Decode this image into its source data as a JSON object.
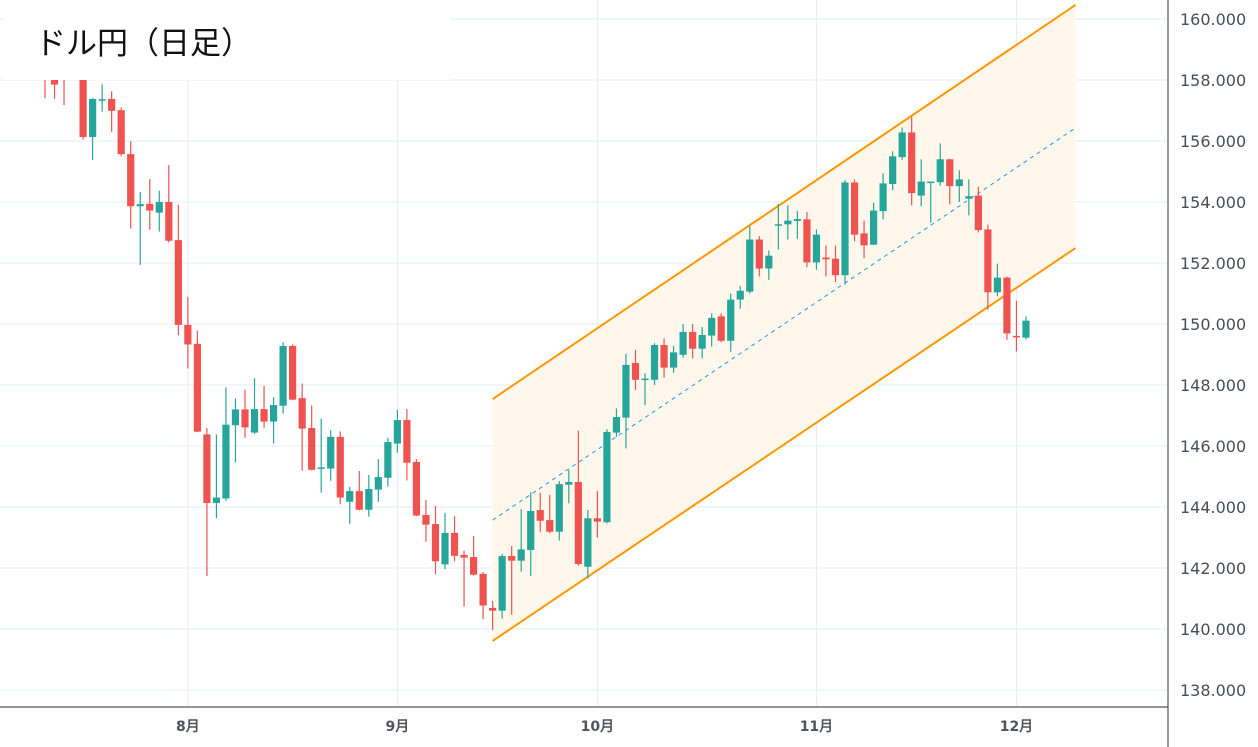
{
  "title": "ドル円（日足）",
  "chart_data": {
    "type": "candlestick",
    "title": "ドル円（日足）",
    "colors": {
      "up": "#26a69a",
      "down": "#ef5350",
      "channel": "#ff9800",
      "channel_fill": "#fff7eb",
      "midline": "#2196f3",
      "grid": "#e5eef2",
      "axis": "#50535e"
    },
    "ylim": [
      137.5,
      160.5
    ],
    "yticks": [
      "138.000",
      "140.000",
      "142.000",
      "144.000",
      "146.000",
      "148.000",
      "150.000",
      "152.000",
      "154.000",
      "156.000",
      "158.000",
      "160.000"
    ],
    "xticks": [
      {
        "label": "8月",
        "index": 15
      },
      {
        "label": "9月",
        "index": 37
      },
      {
        "label": "10月",
        "index": 58
      },
      {
        "label": "11月",
        "index": 81
      },
      {
        "label": "12月",
        "index": 102
      }
    ],
    "ohlc_fields": [
      "open",
      "high",
      "low",
      "close"
    ],
    "ohlc": [
      [
        158.3,
        158.5,
        157.4,
        158.0
      ],
      [
        158.0,
        158.2,
        157.38,
        157.85
      ],
      [
        158.1,
        158.4,
        157.18,
        158.0
      ],
      [
        158.1,
        158.9,
        158.05,
        158.6
      ],
      [
        158.4,
        158.6,
        156.05,
        156.13
      ],
      [
        156.13,
        157.4,
        155.38,
        157.38
      ],
      [
        157.33,
        157.86,
        156.96,
        157.37
      ],
      [
        157.38,
        157.63,
        156.3,
        156.99
      ],
      [
        157.01,
        157.1,
        155.5,
        155.57
      ],
      [
        155.57,
        156.0,
        153.13,
        153.86
      ],
      [
        153.86,
        154.33,
        151.94,
        153.93
      ],
      [
        153.94,
        154.75,
        153.09,
        153.72
      ],
      [
        153.65,
        154.37,
        153.03,
        154.0
      ],
      [
        154.0,
        155.21,
        152.67,
        152.73
      ],
      [
        152.75,
        153.91,
        149.63,
        149.97
      ],
      [
        149.97,
        150.89,
        148.54,
        149.33
      ],
      [
        149.35,
        149.78,
        146.45,
        146.47
      ],
      [
        146.38,
        146.59,
        141.74,
        144.13
      ],
      [
        144.13,
        146.38,
        143.63,
        144.31
      ],
      [
        144.28,
        147.92,
        144.2,
        146.7
      ],
      [
        146.68,
        147.56,
        145.46,
        147.2
      ],
      [
        147.2,
        147.85,
        146.27,
        146.61
      ],
      [
        146.44,
        148.22,
        146.4,
        147.21
      ],
      [
        147.21,
        147.97,
        146.6,
        146.8
      ],
      [
        146.8,
        147.6,
        146.08,
        147.34
      ],
      [
        147.32,
        149.4,
        147.06,
        149.28
      ],
      [
        149.28,
        149.33,
        147.5,
        147.52
      ],
      [
        147.57,
        148.05,
        145.19,
        146.57
      ],
      [
        146.59,
        147.33,
        145.2,
        145.22
      ],
      [
        145.25,
        146.9,
        144.47,
        145.3
      ],
      [
        145.26,
        146.52,
        144.86,
        146.3
      ],
      [
        146.3,
        146.48,
        144.09,
        144.31
      ],
      [
        144.17,
        144.66,
        143.45,
        144.52
      ],
      [
        144.52,
        145.18,
        143.89,
        143.91
      ],
      [
        143.91,
        145.05,
        143.68,
        144.59
      ],
      [
        144.57,
        145.57,
        144.17,
        144.98
      ],
      [
        144.96,
        146.26,
        144.67,
        146.13
      ],
      [
        146.08,
        147.18,
        145.78,
        146.85
      ],
      [
        146.85,
        147.21,
        144.87,
        145.45
      ],
      [
        145.48,
        145.57,
        143.7,
        143.72
      ],
      [
        143.74,
        144.23,
        142.86,
        143.42
      ],
      [
        143.44,
        144.03,
        141.79,
        142.22
      ],
      [
        142.12,
        143.8,
        141.96,
        143.15
      ],
      [
        143.15,
        143.7,
        142.22,
        142.4
      ],
      [
        142.43,
        142.57,
        140.73,
        142.34
      ],
      [
        142.36,
        143.05,
        141.75,
        141.78
      ],
      [
        141.81,
        141.87,
        140.32,
        140.77
      ],
      [
        140.69,
        140.92,
        139.97,
        140.6
      ],
      [
        140.6,
        142.46,
        140.34,
        142.39
      ],
      [
        142.39,
        142.72,
        140.47,
        142.24
      ],
      [
        142.24,
        143.93,
        141.88,
        142.61
      ],
      [
        142.59,
        144.48,
        141.74,
        143.87
      ],
      [
        143.9,
        144.47,
        143.19,
        143.55
      ],
      [
        143.57,
        144.39,
        143.14,
        143.19
      ],
      [
        143.19,
        144.85,
        142.9,
        144.75
      ],
      [
        144.73,
        145.21,
        144.12,
        144.82
      ],
      [
        144.82,
        146.5,
        142.08,
        142.13
      ],
      [
        142.04,
        143.9,
        141.66,
        143.63
      ],
      [
        143.63,
        144.52,
        143.0,
        143.52
      ],
      [
        143.5,
        146.55,
        143.46,
        146.46
      ],
      [
        146.44,
        147.23,
        146.3,
        146.95
      ],
      [
        146.93,
        149.02,
        145.92,
        148.66
      ],
      [
        148.72,
        149.15,
        147.84,
        148.17
      ],
      [
        148.17,
        148.38,
        147.34,
        148.21
      ],
      [
        148.17,
        149.37,
        148.0,
        149.31
      ],
      [
        149.31,
        149.53,
        148.24,
        148.57
      ],
      [
        148.57,
        149.28,
        148.4,
        149.07
      ],
      [
        148.99,
        150.0,
        148.9,
        149.74
      ],
      [
        149.74,
        150.0,
        148.87,
        149.19
      ],
      [
        149.19,
        149.9,
        148.87,
        149.64
      ],
      [
        149.62,
        150.35,
        149.26,
        150.2
      ],
      [
        150.25,
        150.35,
        149.4,
        149.45
      ],
      [
        149.45,
        151.0,
        149.09,
        150.8
      ],
      [
        150.8,
        151.24,
        150.5,
        151.09
      ],
      [
        151.06,
        153.2,
        151.0,
        152.77
      ],
      [
        152.77,
        152.88,
        151.56,
        151.82
      ],
      [
        151.82,
        152.41,
        151.45,
        152.24
      ],
      [
        153.25,
        153.94,
        152.44,
        153.27
      ],
      [
        153.27,
        153.89,
        152.77,
        153.39
      ],
      [
        153.38,
        153.7,
        152.79,
        153.44
      ],
      [
        153.43,
        153.67,
        151.86,
        152.02
      ],
      [
        152.02,
        153.1,
        151.78,
        152.93
      ],
      [
        152.18,
        152.57,
        151.56,
        152.12
      ],
      [
        152.14,
        152.57,
        151.37,
        151.6
      ],
      [
        151.6,
        154.72,
        151.29,
        154.64
      ],
      [
        154.64,
        154.74,
        152.71,
        152.93
      ],
      [
        152.97,
        153.39,
        152.16,
        152.58
      ],
      [
        152.6,
        153.98,
        152.6,
        153.72
      ],
      [
        153.7,
        154.94,
        153.43,
        154.61
      ],
      [
        154.59,
        155.66,
        154.39,
        155.5
      ],
      [
        155.47,
        156.44,
        155.38,
        156.28
      ],
      [
        156.28,
        156.79,
        153.89,
        154.29
      ],
      [
        154.21,
        155.4,
        153.86,
        154.67
      ],
      [
        154.65,
        154.67,
        153.32,
        154.67
      ],
      [
        154.65,
        155.92,
        154.54,
        155.4
      ],
      [
        155.4,
        155.42,
        153.92,
        154.52
      ],
      [
        154.52,
        155.04,
        154.0,
        154.74
      ],
      [
        154.11,
        154.74,
        153.56,
        154.19
      ],
      [
        154.21,
        154.5,
        153.0,
        153.08
      ],
      [
        153.1,
        153.26,
        150.47,
        151.04
      ],
      [
        151.04,
        151.98,
        150.91,
        151.52
      ],
      [
        151.52,
        151.56,
        149.48,
        149.69
      ],
      [
        149.61,
        150.76,
        149.1,
        149.58
      ],
      [
        149.55,
        150.25,
        149.5,
        150.11
      ]
    ],
    "channel": {
      "upper": [
        [
          47,
          147.54
        ],
        [
          108.2,
          160.46
        ]
      ],
      "middle": [
        [
          47,
          143.57
        ],
        [
          108.2,
          156.43
        ]
      ],
      "lower": [
        [
          47,
          139.61
        ],
        [
          108.2,
          152.49
        ]
      ]
    }
  }
}
